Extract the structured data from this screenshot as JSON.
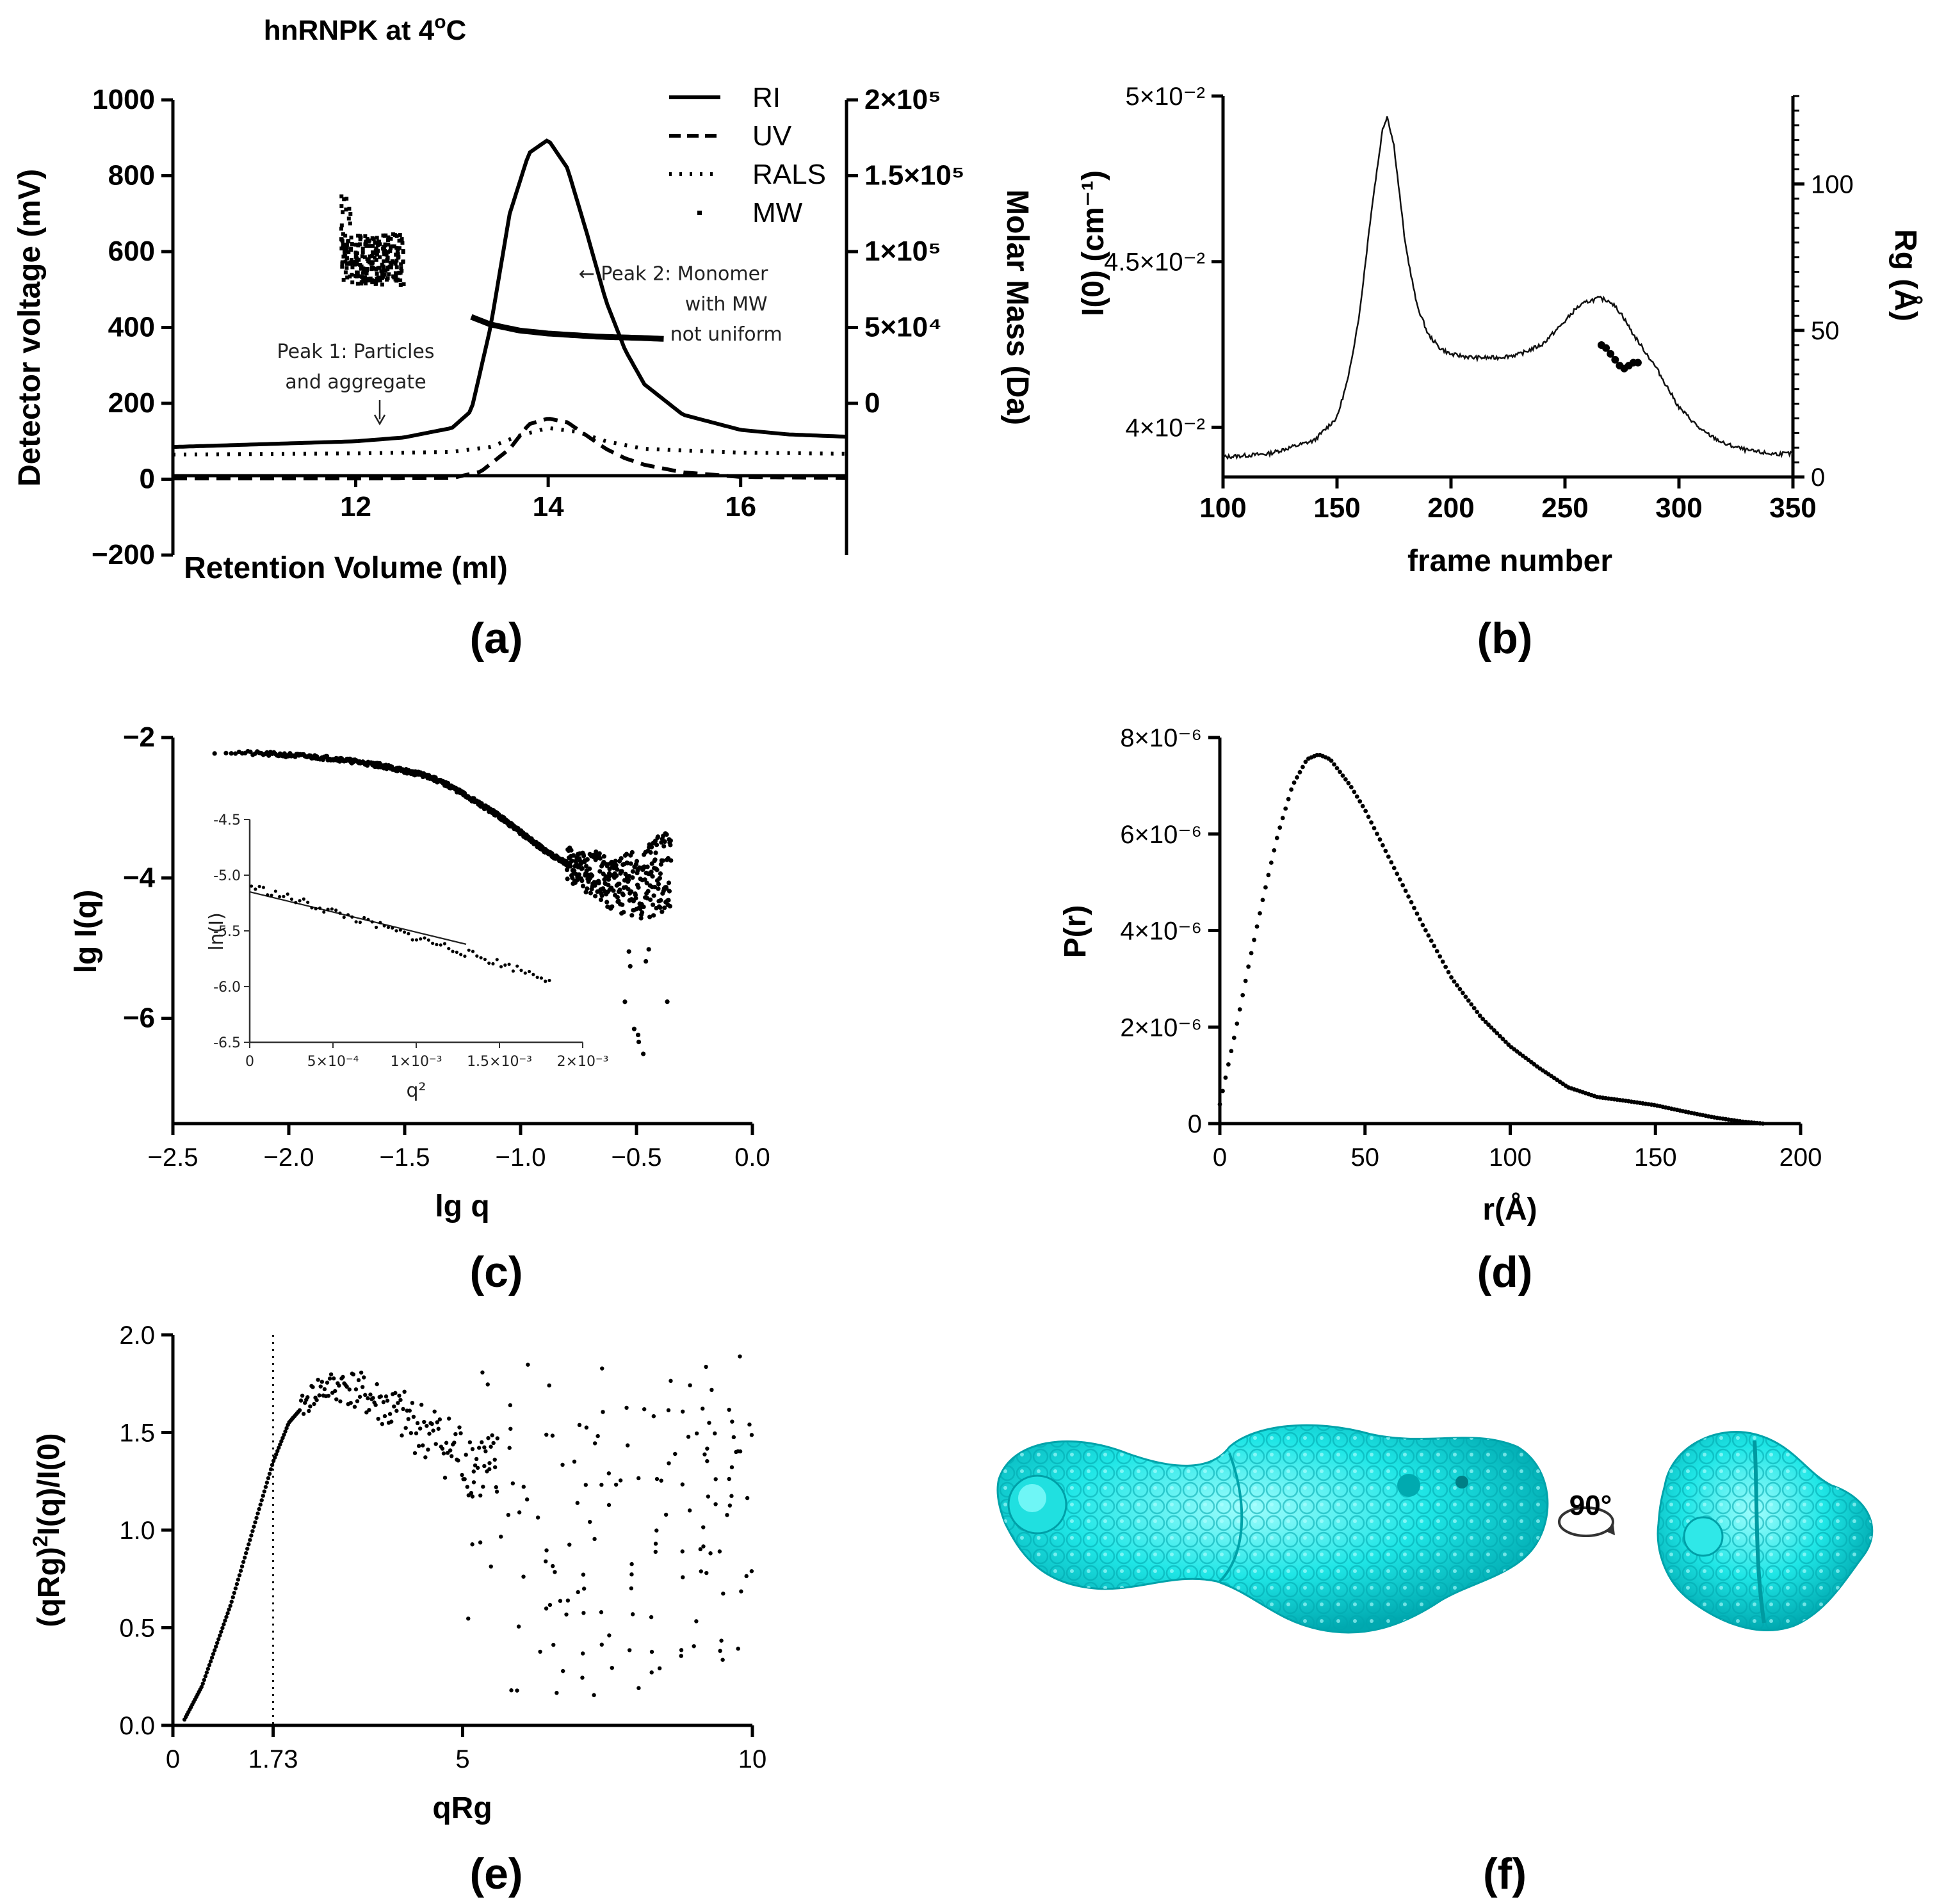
{
  "chart_data": [
    {
      "id": "a",
      "type": "line",
      "title": "hnRNPK at 4oC",
      "title_main": "hnRNPK at 4",
      "title_sup": "o",
      "title_tail": "C",
      "panel_label": "(a)",
      "xlabel": "Retention Volume (ml)",
      "ylabel": "Detector voltage (mV)",
      "y2label": "Molar Mass (Da)",
      "xlim": [
        10.1,
        17.1
      ],
      "ylim": [
        -200,
        1000
      ],
      "y2lim": [
        -100000,
        200000
      ],
      "xticks": [
        12,
        14,
        16
      ],
      "yticks": [
        -200,
        0,
        200,
        400,
        600,
        800,
        1000
      ],
      "ytick_labels": [
        "−200",
        "0",
        "200",
        "400",
        "600",
        "800",
        "1000"
      ],
      "y2ticks": [
        0,
        50000,
        100000,
        150000,
        200000
      ],
      "y2tick_labels": [
        "0",
        "5×10⁴",
        "1×10⁵",
        "1.5×10⁵",
        "2×10⁵"
      ],
      "legend": [
        "RI",
        "UV",
        "RALS",
        "MW"
      ],
      "series": [
        {
          "name": "RI",
          "style": "solid",
          "x": [
            10.1,
            11,
            12,
            12.5,
            13,
            13.2,
            13.4,
            13.6,
            13.8,
            14,
            14.2,
            14.4,
            14.6,
            14.8,
            15,
            15.4,
            16,
            16.5,
            17.1
          ],
          "y": [
            85,
            92,
            100,
            110,
            135,
            180,
            400,
            700,
            860,
            895,
            820,
            650,
            470,
            340,
            250,
            170,
            130,
            118,
            112
          ]
        },
        {
          "name": "UV",
          "style": "dashed",
          "x": [
            10.1,
            12,
            13,
            13.3,
            13.6,
            13.8,
            14,
            14.2,
            14.4,
            14.6,
            14.8,
            15,
            15.4,
            16,
            17.1
          ],
          "y": [
            2,
            2,
            3,
            20,
            80,
            145,
            160,
            150,
            115,
            80,
            55,
            38,
            18,
            6,
            3
          ]
        },
        {
          "name": "RALS",
          "style": "dotted",
          "x": [
            10.1,
            12,
            13,
            13.4,
            13.7,
            14,
            14.3,
            14.6,
            15,
            16,
            17.1
          ],
          "y": [
            65,
            68,
            72,
            85,
            115,
            135,
            125,
            100,
            80,
            70,
            67
          ]
        },
        {
          "name": "MW",
          "style": "thick",
          "x": [
            13.2,
            13.4,
            13.7,
            14,
            14.5,
            15,
            15.2
          ],
          "y2": [
            57000,
            52000,
            48000,
            46000,
            44000,
            43000,
            42500
          ]
        }
      ],
      "annotations": [
        {
          "text": "Peak 1: Particles",
          "x": 12.0,
          "y": 320
        },
        {
          "text": "and aggregate",
          "x": 12.0,
          "y": 240
        },
        {
          "text": "← Peak 2: Monomer",
          "x": 15.3,
          "y": 525
        },
        {
          "text": "with MW",
          "x": 15.85,
          "y": 445
        },
        {
          "text": "not uniform",
          "x": 15.85,
          "y": 365
        }
      ]
    },
    {
      "id": "b",
      "type": "line",
      "panel_label": "(b)",
      "xlabel": "frame number",
      "ylabel": "I(0) (cm⁻¹)",
      "y2label": "Rg (Å)",
      "xlim": [
        100,
        350
      ],
      "ylim": [
        0.0385,
        0.05
      ],
      "y2lim": [
        0,
        130
      ],
      "xticks": [
        100,
        150,
        200,
        250,
        300,
        350
      ],
      "yticks": [
        0.04,
        0.045,
        0.05
      ],
      "ytick_labels": [
        "4×10⁻²",
        "4.5×10⁻²",
        "5×10⁻²"
      ],
      "y2ticks": [
        0,
        50,
        100
      ],
      "series": [
        {
          "name": "I(0)",
          "x": [
            100,
            120,
            140,
            150,
            155,
            160,
            165,
            170,
            172,
            175,
            180,
            185,
            190,
            195,
            200,
            210,
            220,
            230,
            240,
            250,
            255,
            260,
            265,
            270,
            275,
            280,
            290,
            300,
            310,
            320,
            330,
            340,
            350
          ],
          "y": [
            0.0391,
            0.0392,
            0.0396,
            0.0403,
            0.0415,
            0.0435,
            0.0465,
            0.049,
            0.0494,
            0.0485,
            0.0455,
            0.0437,
            0.0428,
            0.0424,
            0.0422,
            0.0421,
            0.0421,
            0.0422,
            0.0425,
            0.0432,
            0.0436,
            0.0438,
            0.0439,
            0.0438,
            0.0434,
            0.0428,
            0.0418,
            0.0406,
            0.0399,
            0.0395,
            0.0393,
            0.0392,
            0.0392
          ]
        },
        {
          "name": "Rg",
          "x": [
            266,
            268,
            270,
            272,
            274,
            276,
            278,
            280,
            282
          ],
          "y2": [
            45,
            44,
            42,
            40,
            38,
            37,
            38,
            39,
            39
          ]
        }
      ]
    },
    {
      "id": "c",
      "type": "scatter",
      "panel_label": "(c)",
      "xlabel": "lg q",
      "ylabel": "lg I(q)",
      "xlim": [
        -2.5,
        0.0
      ],
      "ylim": [
        -7.5,
        -2.0
      ],
      "xticks": [
        -2.5,
        -2.0,
        -1.5,
        -1.0,
        -0.5,
        0.0
      ],
      "xtick_labels": [
        "−2.5",
        "−2.0",
        "−1.5",
        "−1.0",
        "−0.5",
        "0.0"
      ],
      "yticks": [
        -6,
        -4,
        -2
      ],
      "ytick_labels": [
        "−6",
        "−4",
        "−2"
      ],
      "curve": {
        "x": [
          -2.32,
          -2.0,
          -1.8,
          -1.6,
          -1.4,
          -1.3,
          -1.2,
          -1.1,
          -1.0,
          -0.9,
          -0.8,
          -0.7,
          -0.6,
          -0.5,
          -0.42,
          -0.35
        ],
        "y": [
          -2.2,
          -2.25,
          -2.3,
          -2.4,
          -2.55,
          -2.7,
          -2.9,
          -3.1,
          -3.35,
          -3.6,
          -3.8,
          -3.95,
          -4.05,
          -4.1,
          -4.0,
          -3.8
        ]
      },
      "inset": {
        "xlabel": "q²",
        "ylabel": "ln(I)",
        "xlim": [
          0,
          0.002
        ],
        "ylim": [
          -6.5,
          -4.5
        ],
        "xticks": [
          0,
          0.0005,
          0.001,
          0.0015,
          0.002
        ],
        "xtick_labels": [
          "0",
          "5×10⁻⁴",
          "1×10⁻³",
          "1.5×10⁻³",
          "2×10⁻³"
        ],
        "yticks": [
          -6.5,
          -6.0,
          -5.5,
          -5.0,
          -4.5
        ],
        "ytick_labels": [
          "-6.5",
          "-6.0",
          "-5.5",
          "-5.0",
          "-4.5"
        ],
        "fit": {
          "x": [
            0.0,
            0.0013
          ],
          "y": [
            -5.15,
            -5.62
          ]
        },
        "points": {
          "x0": 1e-05,
          "x1": 0.0018,
          "y0": -5.1,
          "y1": -5.93,
          "n": 75
        }
      }
    },
    {
      "id": "d",
      "type": "scatter",
      "panel_label": "(d)",
      "xlabel": "r(Å)",
      "ylabel": "P(r)",
      "xlim": [
        0,
        200
      ],
      "ylim": [
        0,
        8e-06
      ],
      "xticks": [
        0,
        50,
        100,
        150,
        200
      ],
      "yticks": [
        0,
        2e-06,
        4e-06,
        6e-06,
        8e-06
      ],
      "ytick_labels": [
        "0",
        "2×10⁻⁶",
        "4×10⁻⁶",
        "6×10⁻⁶",
        "8×10⁻⁶"
      ],
      "curve": {
        "x": [
          0,
          5,
          10,
          15,
          20,
          25,
          30,
          34,
          38,
          45,
          50,
          60,
          70,
          80,
          90,
          100,
          110,
          120,
          130,
          140,
          150,
          160,
          170,
          180,
          187
        ],
        "y": [
          4e-07,
          1.8e-06,
          3.3e-06,
          4.7e-06,
          6e-06,
          7e-06,
          7.55e-06,
          7.65e-06,
          7.55e-06,
          7e-06,
          6.5e-06,
          5.3e-06,
          4.1e-06,
          3e-06,
          2.2e-06,
          1.6e-06,
          1.15e-06,
          7.5e-07,
          5.5e-07,
          4.7e-07,
          3.8e-07,
          2.5e-07,
          1.3e-07,
          4e-08,
          0
        ]
      }
    },
    {
      "id": "e",
      "type": "scatter",
      "panel_label": "(e)",
      "xlabel": "qRg",
      "ylabel": "(qRg)²I(q)/I(0)",
      "xlim": [
        0,
        10
      ],
      "ylim": [
        0,
        2.0
      ],
      "xticks": [
        0,
        1.73,
        5,
        10
      ],
      "xtick_labels": [
        "0",
        "1.73",
        "5",
        "10"
      ],
      "yticks": [
        0,
        0.5,
        1.0,
        1.5,
        2.0
      ],
      "ytick_labels": [
        "0.0",
        "0.5",
        "1.0",
        "1.5",
        "2.0"
      ],
      "vline": 1.73,
      "curve": {
        "x": [
          0.2,
          0.5,
          1.0,
          1.5,
          1.73,
          2.0,
          2.5,
          3.0,
          3.5,
          4.0,
          4.5,
          5.0,
          5.5,
          6.0
        ],
        "y": [
          0.03,
          0.2,
          0.62,
          1.12,
          1.35,
          1.55,
          1.72,
          1.74,
          1.66,
          1.57,
          1.48,
          1.38,
          1.3,
          1.25
        ]
      },
      "scatter_band": {
        "x0": 5.0,
        "x1": 10.0,
        "ylow": 0.15,
        "yhigh": 1.9,
        "n": 150
      }
    }
  ],
  "panel_f": {
    "label": "(f)",
    "rotation": "90°",
    "color": "#00e5e5"
  }
}
